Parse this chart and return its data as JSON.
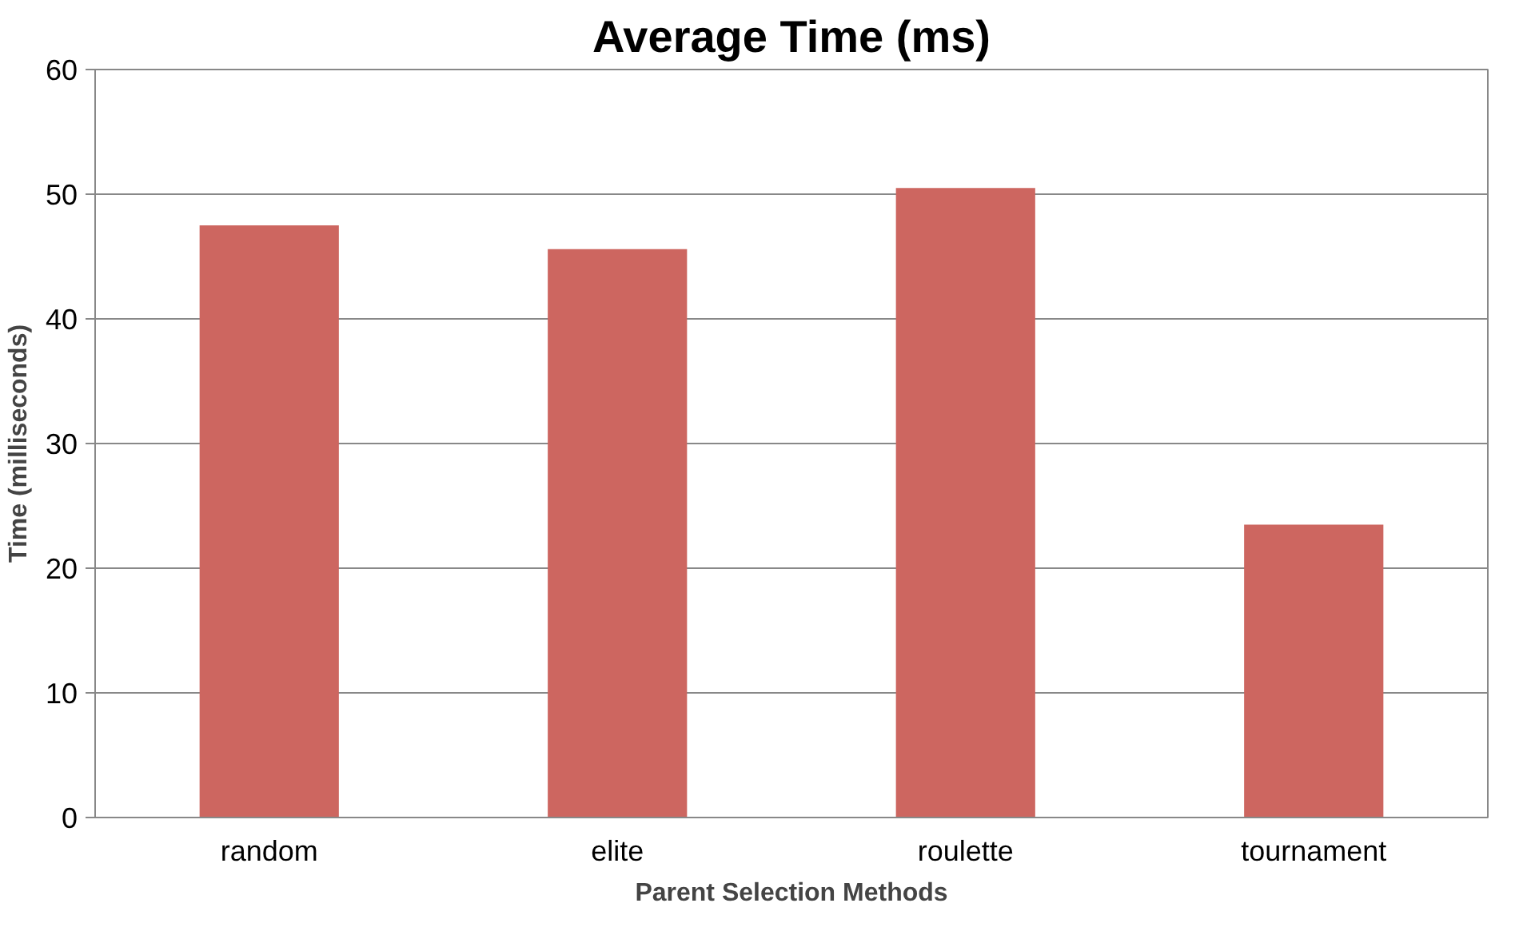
{
  "chart_data": {
    "type": "bar",
    "title": "Average Time (ms)",
    "xlabel": "Parent Selection Methods",
    "ylabel": "Time (milliseconds)",
    "categories": [
      "random",
      "elite",
      "roulette",
      "tournament"
    ],
    "values": [
      47.5,
      45.6,
      50.5,
      23.5
    ],
    "color": "#cd6660",
    "ylim": [
      0,
      60
    ],
    "yticks": [
      0,
      10,
      20,
      30,
      40,
      50,
      60
    ],
    "grid": "y"
  }
}
